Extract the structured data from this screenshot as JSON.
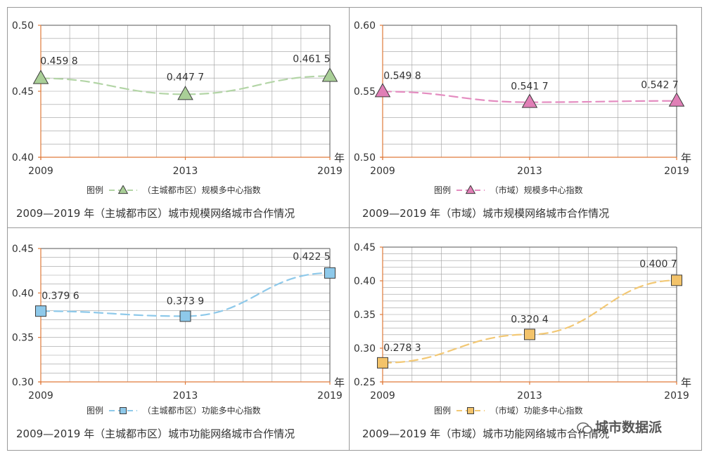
{
  "year_unit": "年",
  "legend_prefix": "图例",
  "charts": [
    {
      "type": "line",
      "caption": "2009—2019 年（主城都市区）城市规模网络城市合作情况",
      "legend_label": "（主城都市区）规模多中心指数",
      "categories": [
        "2009",
        "2013",
        "2019"
      ],
      "values": [
        0.4598,
        0.4477,
        0.4615
      ],
      "value_labels": [
        "0.459 8",
        "0.447 7",
        "0.461 5"
      ],
      "ylim": [
        0.4,
        0.5
      ],
      "yticks": [
        "0.40",
        "0.45",
        "0.50"
      ],
      "marker": "triangle",
      "color": "#b3d5a6",
      "marker_fill": "#a9cf97"
    },
    {
      "type": "line",
      "caption": "2009—2019 年（市域）城市规模网络城市合作情况",
      "legend_label": "（市域）规模多中心指数",
      "categories": [
        "2009",
        "2013",
        "2019"
      ],
      "values": [
        0.5498,
        0.5417,
        0.5427
      ],
      "value_labels": [
        "0.549 8",
        "0.541 7",
        "0.542 7"
      ],
      "ylim": [
        0.5,
        0.6
      ],
      "yticks": [
        "0.50",
        "0.55",
        "0.60"
      ],
      "marker": "triangle",
      "color": "#e48cc0",
      "marker_fill": "#e07fb6"
    },
    {
      "type": "line",
      "caption": "2009—2019 年（主城都市区）城市功能网络城市合作情况",
      "legend_label": "（主城都市区）功能多中心指数",
      "categories": [
        "2009",
        "2013",
        "2019"
      ],
      "values": [
        0.3796,
        0.3739,
        0.4225
      ],
      "value_labels": [
        "0.379 6",
        "0.373 9",
        "0.422 5"
      ],
      "ylim": [
        0.3,
        0.45
      ],
      "yticks": [
        "0.30",
        "0.35",
        "0.40",
        "0.45"
      ],
      "marker": "square",
      "color": "#8ec9ea",
      "marker_fill": "#8ec9ea"
    },
    {
      "type": "line",
      "caption": "2009—2019 年（市域）城市功能网络城市合作情况",
      "legend_label": "（市域）功能多中心指数",
      "categories": [
        "2009",
        "2013",
        "2019"
      ],
      "values": [
        0.2783,
        0.3204,
        0.4007
      ],
      "value_labels": [
        "0.278 3",
        "0.320 4",
        "0.400 7"
      ],
      "ylim": [
        0.25,
        0.45
      ],
      "yticks": [
        "0.25",
        "0.30",
        "0.35",
        "0.40",
        "0.45"
      ],
      "marker": "square",
      "color": "#f2c875",
      "marker_fill": "#f3c36a"
    }
  ],
  "watermark": "城市数据派",
  "chart_data": [
    {
      "type": "line",
      "categories": [
        "2009",
        "2013",
        "2019"
      ],
      "series": [
        {
          "name": "（主城都市区）规模多中心指数",
          "values": [
            0.4598,
            0.4477,
            0.4615
          ]
        }
      ],
      "ylim": [
        0.4,
        0.5
      ],
      "xlabel": "年"
    },
    {
      "type": "line",
      "categories": [
        "2009",
        "2013",
        "2019"
      ],
      "series": [
        {
          "name": "（市域）规模多中心指数",
          "values": [
            0.5498,
            0.5417,
            0.5427
          ]
        }
      ],
      "ylim": [
        0.5,
        0.6
      ],
      "xlabel": "年"
    },
    {
      "type": "line",
      "categories": [
        "2009",
        "2013",
        "2019"
      ],
      "series": [
        {
          "name": "（主城都市区）功能多中心指数",
          "values": [
            0.3796,
            0.3739,
            0.4225
          ]
        }
      ],
      "ylim": [
        0.3,
        0.45
      ],
      "xlabel": "年"
    },
    {
      "type": "line",
      "categories": [
        "2009",
        "2013",
        "2019"
      ],
      "series": [
        {
          "name": "（市域）功能多中心指数",
          "values": [
            0.2783,
            0.3204,
            0.4007
          ]
        }
      ],
      "ylim": [
        0.25,
        0.45
      ],
      "xlabel": "年"
    }
  ]
}
